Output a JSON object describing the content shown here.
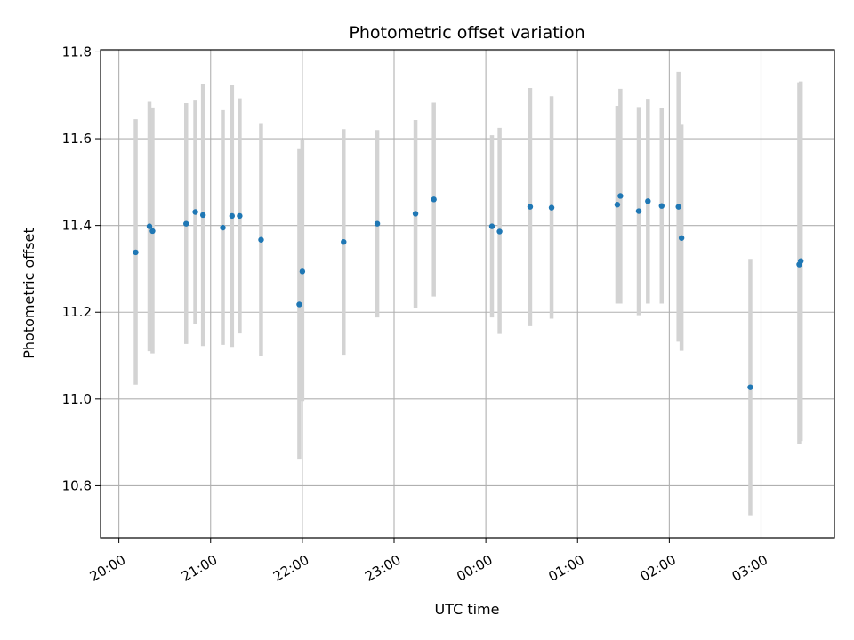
{
  "chart_data": {
    "type": "scatter",
    "title": "Photometric offset variation",
    "xlabel": "UTC time",
    "ylabel": "Photometric offset",
    "x_axis": {
      "kind": "time",
      "start": "2024-01-01T19:48",
      "end": "2024-01-02T03:48",
      "ticks": [
        {
          "time": "2024-01-01T20:00",
          "label": "20:00"
        },
        {
          "time": "2024-01-01T21:00",
          "label": "21:00"
        },
        {
          "time": "2024-01-01T22:00",
          "label": "22:00"
        },
        {
          "time": "2024-01-01T23:00",
          "label": "23:00"
        },
        {
          "time": "2024-01-02T00:00",
          "label": "00:00"
        },
        {
          "time": "2024-01-02T01:00",
          "label": "01:00"
        },
        {
          "time": "2024-01-02T02:00",
          "label": "02:00"
        },
        {
          "time": "2024-01-02T03:00",
          "label": "03:00"
        }
      ]
    },
    "ylim": [
      10.68,
      11.805
    ],
    "yticks": [
      {
        "value": 10.8,
        "label": "10.8"
      },
      {
        "value": 11.0,
        "label": "11.0"
      },
      {
        "value": 11.2,
        "label": "11.2"
      },
      {
        "value": 11.4,
        "label": "11.4"
      },
      {
        "value": 11.6,
        "label": "11.6"
      },
      {
        "value": 11.8,
        "label": "11.8"
      }
    ],
    "grid": true,
    "point_color": "#1f77b4",
    "errorbar_color": "#d3d3d3",
    "points": [
      {
        "t": "2024-01-01T20:11",
        "y": 11.338,
        "low": 11.033,
        "high": 11.645
      },
      {
        "t": "2024-01-01T20:20",
        "y": 11.398,
        "low": 11.11,
        "high": 11.685
      },
      {
        "t": "2024-01-01T20:22",
        "y": 11.387,
        "low": 11.105,
        "high": 11.672
      },
      {
        "t": "2024-01-01T20:44",
        "y": 11.404,
        "low": 11.127,
        "high": 11.682
      },
      {
        "t": "2024-01-01T20:50",
        "y": 11.431,
        "low": 11.173,
        "high": 11.688
      },
      {
        "t": "2024-01-01T20:55",
        "y": 11.424,
        "low": 11.122,
        "high": 11.727
      },
      {
        "t": "2024-01-01T21:08",
        "y": 11.395,
        "low": 11.125,
        "high": 11.666
      },
      {
        "t": "2024-01-01T21:14",
        "y": 11.422,
        "low": 11.12,
        "high": 11.723
      },
      {
        "t": "2024-01-01T21:19",
        "y": 11.422,
        "low": 11.151,
        "high": 11.693
      },
      {
        "t": "2024-01-01T21:33",
        "y": 11.367,
        "low": 11.099,
        "high": 11.636
      },
      {
        "t": "2024-01-01T21:58",
        "y": 11.218,
        "low": 10.862,
        "high": 11.576
      },
      {
        "t": "2024-01-01T22:00",
        "y": 11.294,
        "low": 10.995,
        "high": 11.598
      },
      {
        "t": "2024-01-01T22:27",
        "y": 11.362,
        "low": 11.102,
        "high": 11.622
      },
      {
        "t": "2024-01-01T22:49",
        "y": 11.404,
        "low": 11.188,
        "high": 11.62
      },
      {
        "t": "2024-01-01T23:14",
        "y": 11.427,
        "low": 11.21,
        "high": 11.643
      },
      {
        "t": "2024-01-01T23:26",
        "y": 11.46,
        "low": 11.236,
        "high": 11.683
      },
      {
        "t": "2024-01-02T00:04",
        "y": 11.398,
        "low": 11.188,
        "high": 11.608
      },
      {
        "t": "2024-01-02T00:09",
        "y": 11.386,
        "low": 11.15,
        "high": 11.625
      },
      {
        "t": "2024-01-02T00:29",
        "y": 11.443,
        "low": 11.168,
        "high": 11.717
      },
      {
        "t": "2024-01-02T00:43",
        "y": 11.441,
        "low": 11.185,
        "high": 11.698
      },
      {
        "t": "2024-01-02T01:26",
        "y": 11.448,
        "low": 11.22,
        "high": 11.676
      },
      {
        "t": "2024-01-02T01:28",
        "y": 11.468,
        "low": 11.22,
        "high": 11.715
      },
      {
        "t": "2024-01-02T01:40",
        "y": 11.433,
        "low": 11.193,
        "high": 11.673
      },
      {
        "t": "2024-01-02T01:46",
        "y": 11.456,
        "low": 11.22,
        "high": 11.692
      },
      {
        "t": "2024-01-02T01:55",
        "y": 11.445,
        "low": 11.22,
        "high": 11.67
      },
      {
        "t": "2024-01-02T02:06",
        "y": 11.443,
        "low": 11.132,
        "high": 11.754
      },
      {
        "t": "2024-01-02T02:08",
        "y": 11.371,
        "low": 11.111,
        "high": 11.632
      },
      {
        "t": "2024-01-02T02:53",
        "y": 11.027,
        "low": 10.732,
        "high": 11.323
      },
      {
        "t": "2024-01-02T03:25",
        "y": 11.31,
        "low": 10.897,
        "high": 11.73
      },
      {
        "t": "2024-01-02T03:26",
        "y": 11.318,
        "low": 10.903,
        "high": 11.732
      }
    ]
  }
}
